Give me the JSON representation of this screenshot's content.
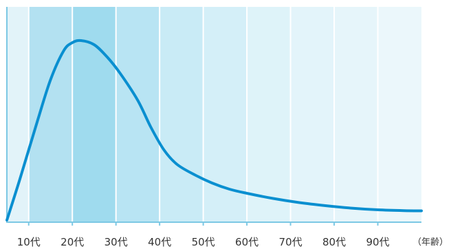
{
  "chart_data": {
    "type": "area",
    "title": "",
    "xlabel": "",
    "ylabel": "",
    "x_unit_label": "（年齢）",
    "categories": [
      "10代",
      "20代",
      "30代",
      "40代",
      "50代",
      "60代",
      "70代",
      "80代",
      "90代"
    ],
    "xlim": [
      5,
      100
    ],
    "ylim": [
      0,
      100
    ],
    "y_axis_ticks": "none",
    "grid": true,
    "legend": "none",
    "band_shading": [
      {
        "from": 5,
        "to": 10,
        "color": "#e2f3f9"
      },
      {
        "from": 10,
        "to": 20,
        "color": "#b3e1f1"
      },
      {
        "from": 20,
        "to": 30,
        "color": "#9fdbee"
      },
      {
        "from": 30,
        "to": 40,
        "color": "#b8e4f3"
      },
      {
        "from": 40,
        "to": 50,
        "color": "#c9ebf6"
      },
      {
        "from": 50,
        "to": 60,
        "color": "#d4eff8"
      },
      {
        "from": 60,
        "to": 70,
        "color": "#def3f9"
      },
      {
        "from": 70,
        "to": 80,
        "color": "#e3f4fa"
      },
      {
        "from": 80,
        "to": 90,
        "color": "#e6f5fa"
      },
      {
        "from": 90,
        "to": 100,
        "color": "#ebf7fb"
      }
    ],
    "series": [
      {
        "color": "#0a8fd0",
        "x": [
          5,
          8,
          12,
          15,
          18,
          20,
          22,
          25,
          28,
          31,
          35,
          38,
          41,
          44,
          48,
          52,
          56,
          60,
          66,
          72,
          78,
          84,
          90,
          96,
          100
        ],
        "y": [
          0,
          20,
          48,
          68,
          82,
          86,
          87,
          85,
          79,
          71,
          58,
          45,
          34,
          27,
          22,
          18,
          15,
          13,
          10.5,
          8.5,
          7,
          5.8,
          5,
          4.6,
          4.5
        ]
      }
    ],
    "colors": {
      "axis": "#7cc8e4",
      "gridline": "#ffffff",
      "curve": "#0a8fd0"
    }
  }
}
